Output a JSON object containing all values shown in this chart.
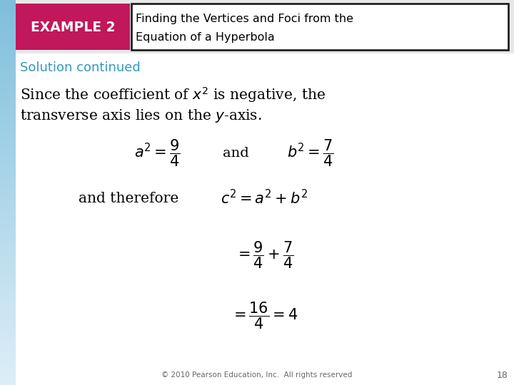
{
  "bg_color": "#ffffff",
  "left_bar_color_top": "#a8d0e8",
  "left_bar_color_bottom": "#d0e8f5",
  "header_box_color": "#c0185a",
  "header_text_color": "#ffffff",
  "header_title_color": "#000000",
  "solution_color": "#3399bb",
  "body_text_color": "#000000",
  "footer_text_color": "#666666",
  "example_label": "EXAMPLE 2",
  "header_title_line1": "Finding the Vertices and Foci from the",
  "header_title_line2": "Equation of a Hyperbola",
  "solution_label": "Solution continued",
  "footer": "© 2010 Pearson Education, Inc.  All rights reserved",
  "page_num": "18"
}
